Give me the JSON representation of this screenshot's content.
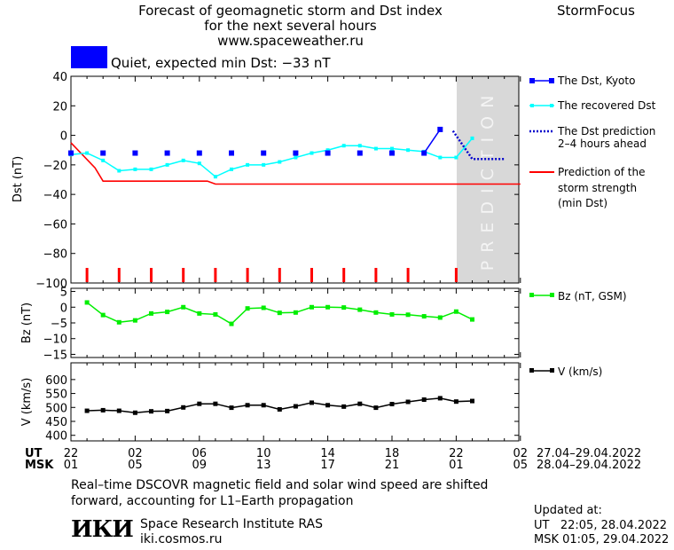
{
  "header": {
    "title_line1": "Forecast of geomagnetic storm and Dst index",
    "title_line2": "for the next several hours",
    "site": "www.spaceweather.ru",
    "brand": "StormFocus"
  },
  "status": {
    "text": "Quiet, expected min Dst: −33 nT",
    "color": "#0000ff"
  },
  "colors": {
    "kyoto": "#0000ff",
    "recovered": "#00ffff",
    "prediction_dotted": "#0000cc",
    "storm_strength": "#ff0000",
    "bz": "#00ee00",
    "speed": "#000000",
    "prediction_band": "#d8d8d8",
    "prediction_text": "#f4f4f4"
  },
  "legend": {
    "kyoto": "The Dst, Kyoto",
    "recovered": "The recovered Dst",
    "prediction_line1": "The Dst prediction",
    "prediction_line2": "2–4 hours ahead",
    "strength_line1": "Prediction of the",
    "strength_line2": "storm strength",
    "strength_line3": "(min Dst)",
    "bz": "Bz (nT, GSM)",
    "speed": "V (km/s)"
  },
  "prediction_label": "PREDICTION",
  "chart_data": [
    {
      "type": "line",
      "ylabel": "Dst (nT)",
      "ylim": [
        -100,
        40
      ],
      "yticks": [
        "40",
        "20",
        "0",
        "−20",
        "−40",
        "−60",
        "−80",
        "−100"
      ],
      "x_unit": "hours since 22 UT 27.04.2022",
      "xlim": [
        0,
        28
      ],
      "prediction_from_hour": 24,
      "series": [
        {
          "name": "The Dst, Kyoto",
          "x": [
            0,
            2,
            4,
            6,
            8,
            10,
            12,
            14,
            16,
            18,
            20,
            22,
            23
          ],
          "y": [
            -12,
            -12,
            -12,
            -12,
            -12,
            -12,
            -12,
            -12,
            -12,
            -12,
            -12,
            -12,
            4
          ]
        },
        {
          "name": "The recovered Dst",
          "x": [
            0,
            1,
            2,
            3,
            4,
            5,
            6,
            7,
            8,
            9,
            10,
            11,
            12,
            13,
            14,
            15,
            16,
            17,
            18,
            19,
            20,
            21,
            22,
            23,
            24,
            25
          ],
          "y": [
            -13,
            -12,
            -17,
            -24,
            -23,
            -23,
            -20,
            -17,
            -19,
            -28,
            -23,
            -20,
            -20,
            -18,
            -15,
            -12,
            -10,
            -7,
            -7,
            -9,
            -9,
            -10,
            -11,
            -15,
            -15,
            -2
          ]
        },
        {
          "name": "The Dst prediction 2–4 hours ahead",
          "x": [
            23.8,
            25,
            26,
            27
          ],
          "y": [
            3,
            -16,
            -16,
            -16
          ]
        },
        {
          "name": "Prediction of the storm strength (min Dst)",
          "x": [
            0,
            1.5,
            2,
            5,
            8.5,
            9,
            28
          ],
          "y": [
            -5,
            -22,
            -31,
            -31,
            -31,
            -33,
            -33
          ]
        }
      ],
      "storm_markers_x": [
        1,
        3,
        5,
        7,
        9,
        11,
        13,
        15,
        17,
        19,
        21,
        24
      ]
    },
    {
      "type": "line",
      "ylabel": "Bz (nT)",
      "ylim": [
        -16,
        6
      ],
      "yticks": [
        "5",
        "0",
        "−5",
        "−10",
        "−15"
      ],
      "series": [
        {
          "name": "Bz (nT, GSM)",
          "x": [
            1,
            2,
            3,
            4,
            5,
            6,
            7,
            8,
            9,
            10,
            11,
            12,
            13,
            14,
            15,
            16,
            17,
            18,
            19,
            20,
            21,
            22,
            23,
            24,
            25
          ],
          "y": [
            1.5,
            -2.5,
            -4.8,
            -4.2,
            -2,
            -1.5,
            0,
            -2,
            -2.3,
            -5.3,
            -0.4,
            -0.2,
            -1.8,
            -1.7,
            0,
            0,
            -0.1,
            -0.8,
            -1.7,
            -2.3,
            -2.4,
            -2.9,
            -3.3,
            -1.4,
            -3.9
          ]
        }
      ]
    },
    {
      "type": "line",
      "ylabel": "V (km/s)",
      "ylim": [
        380,
        660
      ],
      "yticks": [
        "600",
        "550",
        "500",
        "450",
        "400"
      ],
      "series": [
        {
          "name": "V (km/s)",
          "x": [
            1,
            2,
            3,
            4,
            5,
            6,
            7,
            8,
            9,
            10,
            11,
            12,
            13,
            14,
            15,
            16,
            17,
            18,
            19,
            20,
            21,
            22,
            23,
            24,
            25
          ],
          "y": [
            488,
            490,
            488,
            481,
            486,
            487,
            500,
            513,
            513,
            499,
            508,
            508,
            493,
            504,
            517,
            508,
            503,
            513,
            499,
            512,
            520,
            528,
            533,
            521,
            523
          ]
        }
      ]
    }
  ],
  "time_axis": {
    "ut_label": "UT",
    "msk_label": "MSK",
    "ut_ticks": [
      "22",
      "02",
      "06",
      "10",
      "14",
      "18",
      "22",
      "02"
    ],
    "msk_ticks": [
      "01",
      "05",
      "09",
      "13",
      "17",
      "21",
      "01",
      "05"
    ],
    "ut_range": "27.04–29.04.2022",
    "msk_range": "28.04–29.04.2022"
  },
  "footer": {
    "note_line1": "Real–time DSCOVR magnetic field and solar wind speed are shifted",
    "note_line2": "forward, accounting for L1–Earth propagation",
    "logo": "ИКИ",
    "institute": "Space Research Institute RAS",
    "site": "iki.cosmos.ru",
    "updated_title": "Updated at:",
    "updated_ut": "UT   22:05, 28.04.2022",
    "updated_msk": "MSK 01:05, 29.04.2022"
  }
}
